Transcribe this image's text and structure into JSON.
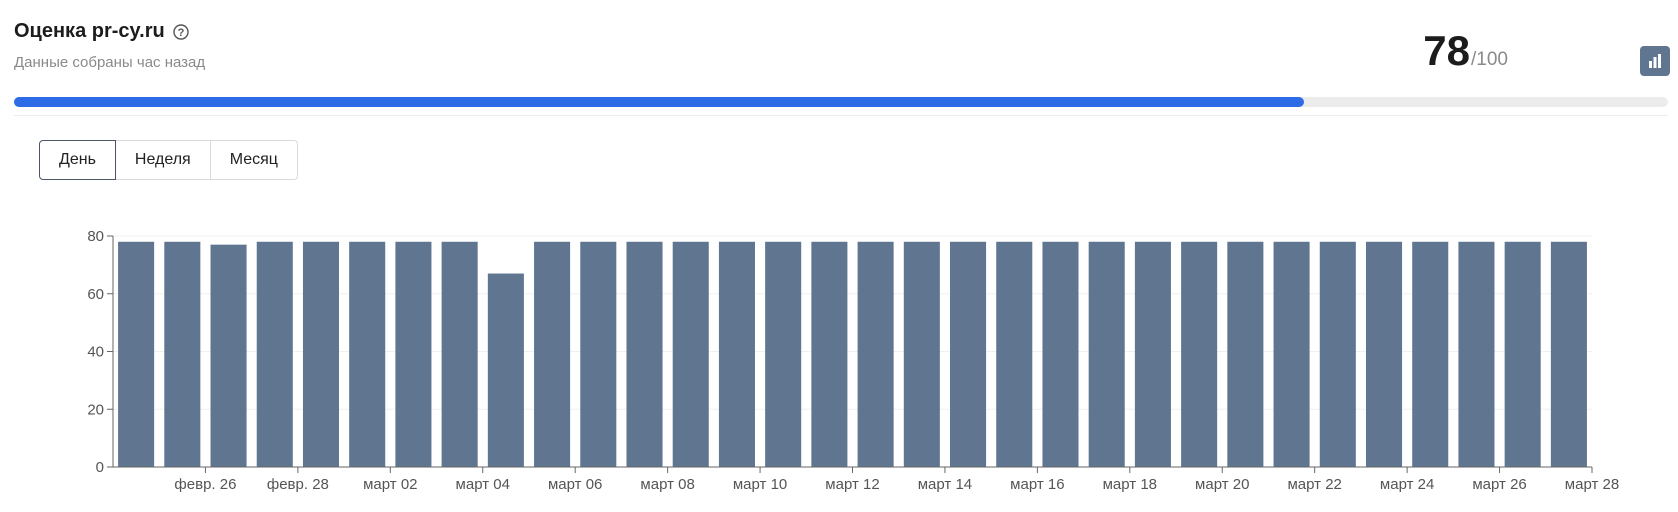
{
  "header": {
    "title": "Оценка pr-cy.ru",
    "subtitle": "Данные собраны час назад",
    "score": "78",
    "score_max": "/100",
    "help_icon": "question-circle-icon",
    "chart_button_icon": "bar-chart-icon"
  },
  "progress": {
    "fraction": 0.78,
    "color": "#2e6be6"
  },
  "tabs": [
    {
      "label": "День",
      "active": true
    },
    {
      "label": "Неделя",
      "active": false
    },
    {
      "label": "Месяц",
      "active": false
    }
  ],
  "chart_data": {
    "type": "bar",
    "title": "",
    "xlabel": "",
    "ylabel": "",
    "ylim": [
      0,
      80
    ],
    "yticks": [
      0,
      20,
      40,
      60,
      80
    ],
    "bar_color": "#5f7590",
    "categories": [
      "2025-02-25",
      "2025-02-26",
      "2025-02-27",
      "2025-02-28",
      "2025-03-01",
      "2025-03-02",
      "2025-03-03",
      "2025-03-04",
      "2025-03-05",
      "2025-03-06",
      "2025-03-07",
      "2025-03-08",
      "2025-03-09",
      "2025-03-10",
      "2025-03-11",
      "2025-03-12",
      "2025-03-13",
      "2025-03-14",
      "2025-03-15",
      "2025-03-16",
      "2025-03-17",
      "2025-03-18",
      "2025-03-19",
      "2025-03-20",
      "2025-03-21",
      "2025-03-22",
      "2025-03-23",
      "2025-03-24",
      "2025-03-25",
      "2025-03-26",
      "2025-03-27",
      "2025-03-28"
    ],
    "values": [
      78,
      78,
      77,
      78,
      78,
      78,
      78,
      78,
      67,
      78,
      78,
      78,
      78,
      78,
      78,
      78,
      78,
      78,
      78,
      78,
      78,
      78,
      78,
      78,
      78,
      78,
      78,
      78,
      78,
      78,
      78,
      78
    ],
    "xtick_labels": [
      "февр. 26",
      "февр. 28",
      "март 02",
      "март 04",
      "март 06",
      "март 08",
      "март 10",
      "март 12",
      "март 14",
      "март 16",
      "март 18",
      "март 20",
      "март 22",
      "март 24",
      "март 26",
      "март 28"
    ]
  }
}
